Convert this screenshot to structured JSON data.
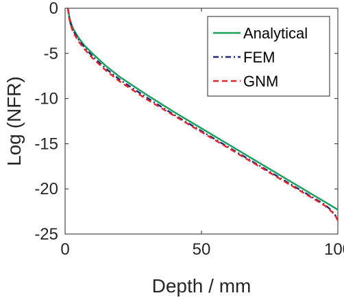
{
  "chart_data": {
    "type": "line",
    "title": "",
    "xlabel": "Depth / mm",
    "ylabel": "Log (NFR)",
    "xlim": [
      0,
      100
    ],
    "ylim": [
      -25,
      0
    ],
    "xticks": [
      0,
      50,
      100
    ],
    "yticks": [
      0,
      -5,
      -10,
      -15,
      -20,
      -25
    ],
    "xtick_labels": [
      "0",
      "50",
      "100"
    ],
    "ytick_labels": [
      "0",
      "-5",
      "-10",
      "-15",
      "-20",
      "-25"
    ],
    "grid": false,
    "legend_position": "top-right",
    "series": [
      {
        "name": "Analytical",
        "color": "#1aa05a",
        "style": "solid",
        "x": [
          1,
          1.5,
          2,
          3,
          5,
          7,
          10,
          15,
          20,
          30,
          40,
          50,
          60,
          70,
          80,
          90,
          95,
          100
        ],
        "y": [
          0,
          -0.9,
          -1.5,
          -2.3,
          -3.3,
          -4.1,
          -5.0,
          -6.4,
          -7.6,
          -9.6,
          -11.5,
          -13.3,
          -15.1,
          -16.9,
          -18.7,
          -20.5,
          -21.4,
          -22.3
        ]
      },
      {
        "name": "FEM",
        "color": "#1f2a7a",
        "style": "dashdot",
        "x": [
          1,
          1.5,
          2,
          3,
          5,
          7,
          10,
          15,
          20,
          30,
          40,
          50,
          60,
          70,
          80,
          90,
          95,
          97,
          99,
          100
        ],
        "y": [
          0,
          -1.0,
          -1.7,
          -2.5,
          -3.5,
          -4.3,
          -5.3,
          -6.7,
          -7.9,
          -9.9,
          -11.8,
          -13.6,
          -15.4,
          -17.2,
          -19.0,
          -20.8,
          -21.7,
          -22.2,
          -22.9,
          -23.5
        ]
      },
      {
        "name": "GNM",
        "color": "#e4262c",
        "style": "dashed",
        "x": [
          1,
          1.5,
          2,
          3,
          5,
          7,
          10,
          15,
          20,
          30,
          40,
          50,
          60,
          70,
          80,
          90,
          95,
          97,
          99,
          100
        ],
        "y": [
          0,
          -1.1,
          -1.8,
          -2.7,
          -3.7,
          -4.5,
          -5.5,
          -6.9,
          -8.1,
          -10.1,
          -11.9,
          -13.7,
          -15.5,
          -17.3,
          -19.1,
          -20.9,
          -21.8,
          -22.3,
          -22.9,
          -23.5
        ]
      }
    ]
  }
}
